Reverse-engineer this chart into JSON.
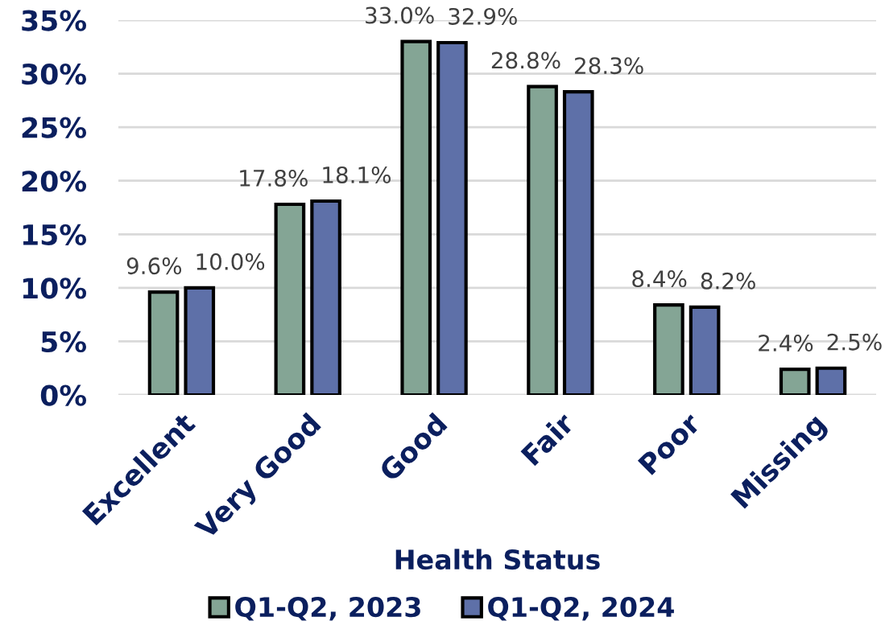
{
  "chart_data": {
    "type": "bar",
    "categories": [
      "Excellent",
      "Very Good",
      "Good",
      "Fair",
      "Poor",
      "Missing"
    ],
    "xlabel": "Health Status",
    "series": [
      {
        "name": "Q1-Q2, 2023",
        "color": "#84a595",
        "values": [
          9.6,
          17.8,
          33.0,
          28.8,
          8.4,
          2.4
        ],
        "value_labels": [
          "9.6%",
          "17.8%",
          "33.0%",
          "28.8%",
          "8.4%",
          "2.4%"
        ]
      },
      {
        "name": "Q1-Q2, 2024",
        "color": "#5e70a8",
        "values": [
          10.0,
          18.1,
          32.9,
          28.3,
          8.2,
          2.5
        ],
        "value_labels": [
          "10.0%",
          "18.1%",
          "32.9%",
          "28.3%",
          "8.2%",
          "2.5%"
        ]
      }
    ],
    "ylim": [
      0,
      35
    ],
    "yticks": [
      {
        "value": 0,
        "label": "0%"
      },
      {
        "value": 5,
        "label": "5%"
      },
      {
        "value": 10,
        "label": "10%"
      },
      {
        "value": 15,
        "label": "15%"
      },
      {
        "value": 20,
        "label": "20%"
      },
      {
        "value": 25,
        "label": "25%"
      },
      {
        "value": 30,
        "label": "30%"
      },
      {
        "value": 35,
        "label": "35%"
      }
    ],
    "grid": "y",
    "legend": "bottom"
  }
}
